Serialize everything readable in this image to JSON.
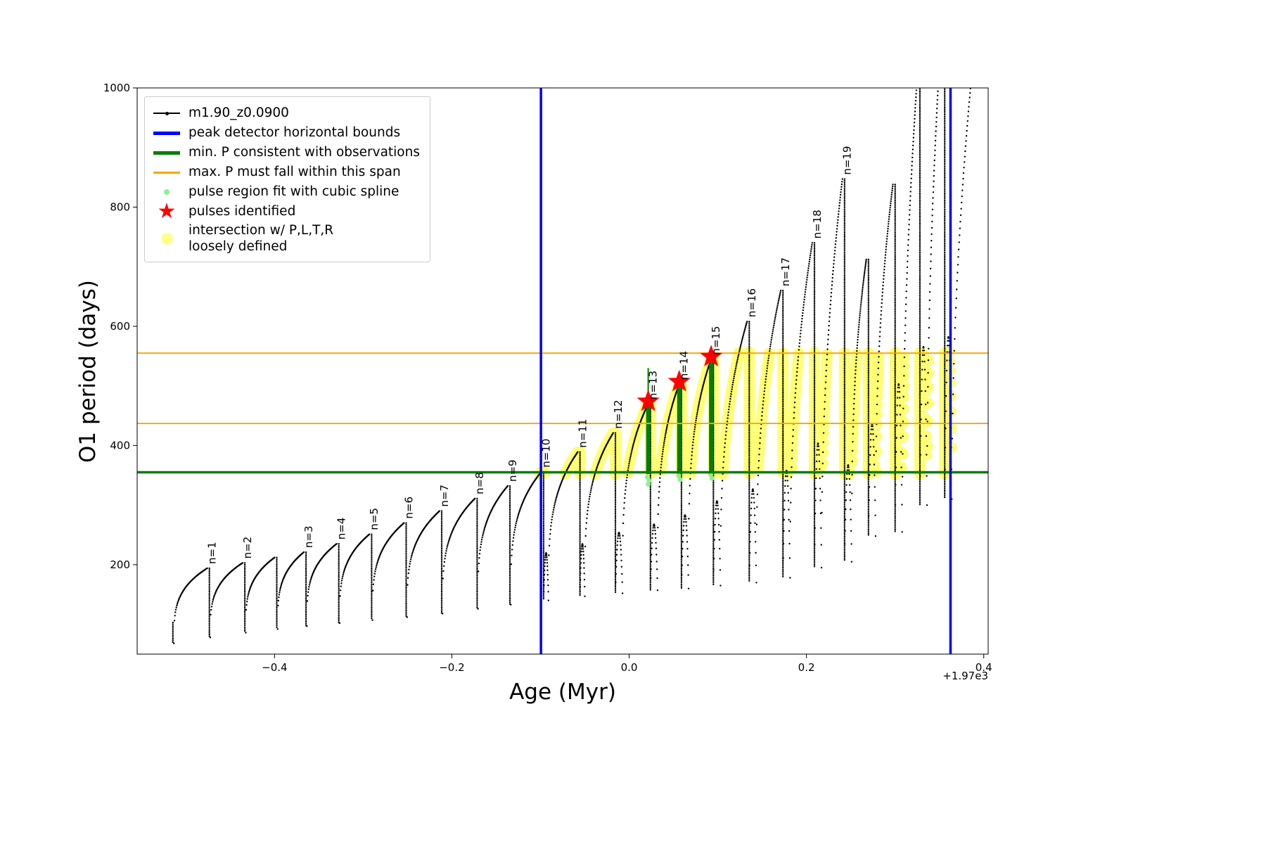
{
  "legend": {
    "items": [
      {
        "id": "series",
        "type": "line-dot",
        "color": "#000000",
        "label": "m1.90_z0.0900"
      },
      {
        "id": "peak-bounds",
        "type": "thick-line",
        "color": "#0000ff",
        "label": "peak detector horizontal bounds"
      },
      {
        "id": "min-p",
        "type": "thick-line",
        "color": "#008000",
        "label": "min. P consistent with observations"
      },
      {
        "id": "max-p",
        "type": "line",
        "color": "#ffa500",
        "label": "max. P must fall within this span"
      },
      {
        "id": "pulse-region",
        "type": "dot",
        "color": "#90ee90",
        "label": "pulse region fit with cubic spline"
      },
      {
        "id": "pulses-identified",
        "type": "star",
        "color": "#ff0000",
        "label": "pulses identified"
      },
      {
        "id": "intersection",
        "type": "bigdot",
        "color": "#ffff66",
        "label": "intersection w/ P,L,T,R\nloosely defined"
      }
    ]
  },
  "chart_data": {
    "type": "line",
    "title": "",
    "xlabel": "Age (Myr)",
    "ylabel": "O1 period (days)",
    "x_offset_label": "+1.97e3",
    "series_label": "m1.90_z0.0900",
    "xlim": [
      -0.555,
      0.405
    ],
    "ylim": [
      50,
      1000
    ],
    "xticks": [
      {
        "v": -0.4,
        "label": "−0.4"
      },
      {
        "v": -0.2,
        "label": "−0.2"
      },
      {
        "v": 0.0,
        "label": "0.0"
      },
      {
        "v": 0.2,
        "label": "0.2"
      },
      {
        "v": 0.4,
        "label": "0.4"
      }
    ],
    "yticks": [
      {
        "v": 200,
        "label": "200"
      },
      {
        "v": 400,
        "label": "400"
      },
      {
        "v": 600,
        "label": "600"
      },
      {
        "v": 800,
        "label": "800"
      },
      {
        "v": 1000,
        "label": "1000"
      }
    ],
    "blue_vlines": [
      -0.0995,
      0.3625
    ],
    "green_hline": 355,
    "orange_hlines": [
      437,
      555
    ],
    "yellow_band": {
      "xmin": -0.106,
      "xmax": 0.3635,
      "ymin": 352,
      "ymax": 557
    },
    "pulses": [
      {
        "label": "n=1",
        "xd": -0.5135,
        "dip": 68,
        "xp": -0.476,
        "pk": 194
      },
      {
        "label": "n=2",
        "xd": -0.4725,
        "dip": 78,
        "xp": -0.436,
        "pk": 203
      },
      {
        "label": null,
        "xd": -0.4325,
        "dip": 86,
        "xp": -0.4,
        "pk": 212
      },
      {
        "label": "n=3",
        "xd": -0.3965,
        "dip": 92,
        "xp": -0.367,
        "pk": 221
      },
      {
        "label": "n=4",
        "xd": -0.3635,
        "dip": 97,
        "xp": -0.33,
        "pk": 235
      },
      {
        "label": "n=5",
        "xd": -0.3265,
        "dip": 102,
        "xp": -0.293,
        "pk": 251
      },
      {
        "label": "n=6",
        "xd": -0.2895,
        "dip": 107,
        "xp": -0.254,
        "pk": 270
      },
      {
        "label": "n=7",
        "xd": -0.2505,
        "dip": 112,
        "xp": -0.214,
        "pk": 290
      },
      {
        "label": "n=8",
        "xd": -0.2105,
        "dip": 118,
        "xp": -0.174,
        "pk": 311
      },
      {
        "label": "n=9",
        "xd": -0.1705,
        "dip": 126,
        "xp": -0.137,
        "pk": 332
      },
      {
        "label": "n=10",
        "xd": -0.1335,
        "dip": 133,
        "xp": -0.099,
        "pk": 356
      },
      {
        "label": "n=11",
        "xd": -0.091,
        "dip": 140,
        "xp": -0.058,
        "pk": 389
      },
      {
        "label": "n=12",
        "xd": -0.05,
        "dip": 147,
        "xp": -0.018,
        "pk": 421
      },
      {
        "label": "n=13",
        "xd": -0.0075,
        "dip": 152,
        "xp": 0.0215,
        "pk": 470
      },
      {
        "label": "n=14",
        "xd": 0.032,
        "dip": 157,
        "xp": 0.0565,
        "pk": 503
      },
      {
        "label": "n=15",
        "xd": 0.067,
        "dip": 160,
        "xp": 0.0925,
        "pk": 545
      },
      {
        "label": "n=16",
        "xd": 0.103,
        "dip": 165,
        "xp": 0.133,
        "pk": 608,
        "e": 0.35
      },
      {
        "label": "n=17",
        "xd": 0.1435,
        "dip": 170,
        "xp": 0.171,
        "pk": 660,
        "e": 0.38
      },
      {
        "label": "n=18",
        "xd": 0.1815,
        "dip": 178,
        "xp": 0.2065,
        "pk": 740,
        "e": 0.42
      },
      {
        "label": "n=19",
        "xd": 0.217,
        "dip": 195,
        "xp": 0.2405,
        "pk": 847,
        "e": 0.46
      },
      {
        "label": null,
        "xd": 0.251,
        "dip": 205,
        "xp": 0.2675,
        "pk": 712,
        "e": 0.35
      },
      {
        "label": null,
        "xd": 0.278,
        "dip": 248,
        "xp": 0.2975,
        "pk": 838,
        "e": 0.4
      },
      {
        "label": null,
        "xd": 0.308,
        "dip": 255,
        "xp": 0.3255,
        "pk": 1030,
        "e": 0.5
      },
      {
        "label": null,
        "xd": 0.336,
        "dip": 300,
        "xp": 0.3535,
        "pk": 1130,
        "e": 0.5
      },
      {
        "label": null,
        "xd": 0.364,
        "dip": 310,
        "xp": 0.396,
        "pk": 1160,
        "e": 0.5
      }
    ],
    "green_bars": [
      {
        "x": 0.0215,
        "y0": 352,
        "y1": 466,
        "spike_top": 530
      },
      {
        "x": 0.0565,
        "y0": 352,
        "y1": 498,
        "spike_top": null
      },
      {
        "x": 0.0925,
        "y0": 352,
        "y1": 540,
        "spike_top": null
      }
    ],
    "spline_dots": [
      [
        0.0205,
        347
      ],
      [
        0.0225,
        341
      ],
      [
        0.0215,
        335
      ],
      [
        0.056,
        349
      ],
      [
        0.0575,
        343
      ],
      [
        0.092,
        351
      ],
      [
        0.0935,
        345
      ]
    ],
    "stars": [
      [
        0.0215,
        474
      ],
      [
        0.0565,
        507
      ],
      [
        0.0925,
        549
      ]
    ],
    "colors": {
      "black": "#000000",
      "blue": "#0000ff",
      "green": "#008000",
      "orange": "#ffa500",
      "yellow": "#ffff00",
      "lightgreen": "#90ee90",
      "red": "#ff0000"
    },
    "legend_position": "upper left",
    "grid": false
  }
}
